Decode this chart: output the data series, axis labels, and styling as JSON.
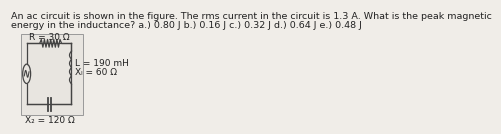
{
  "title_line1": "An ac circuit is shown in the figure. The rms current in the circuit is 1.3 A. What is the peak magnetic",
  "title_line2": "energy in the inductance? a.) 0.80 J b.) 0.16 J c.) 0.32 J d.) 0.64 J e.) 0.48 J",
  "R_label": "R = 30 Ω",
  "L_label": "L = 190 mH",
  "XL_label": "Xₗ = 60 Ω",
  "XC_label": "X₂ = 120 Ω",
  "bg_color": "#f0ede8",
  "circuit_bg": "#e8e5e0",
  "circuit_border": "#999999",
  "wire_color": "#444444",
  "text_color": "#222222",
  "font_size_title": 6.8,
  "font_size_circuit": 6.5
}
